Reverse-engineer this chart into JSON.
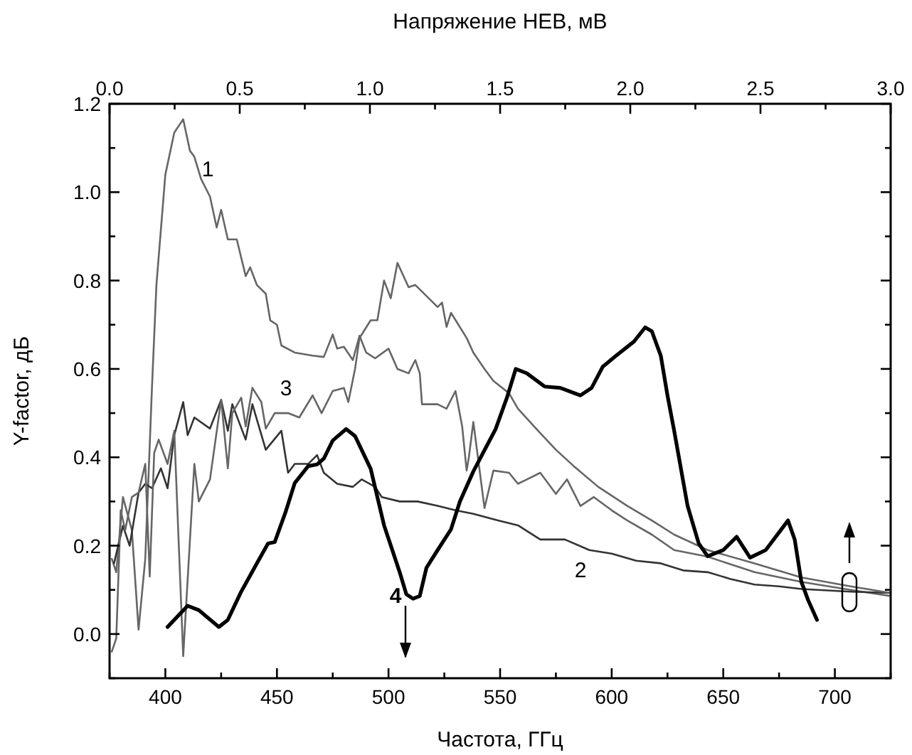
{
  "chart_data": {
    "type": "line",
    "xlabel": "Частота, ГГц",
    "x2label": "Напряжение НЕВ, мВ",
    "ylabel": "Y-factor, дБ",
    "xlim": [
      375,
      725
    ],
    "xticks": [
      {
        "value": 375,
        "label": null
      },
      400,
      {
        "value": 425,
        "label": null
      },
      450,
      {
        "value": 475,
        "label": null
      },
      500,
      {
        "value": 525,
        "label": null
      },
      550,
      {
        "value": 575,
        "label": null
      },
      600,
      {
        "value": 625,
        "label": null
      },
      650,
      {
        "value": 675,
        "label": null
      },
      700,
      {
        "value": 725,
        "label": null
      }
    ],
    "x2lim": [
      0,
      3
    ],
    "x2ticks": [
      {
        "value": 0,
        "label": "0.0"
      },
      {
        "value": 0.25,
        "label": null
      },
      {
        "value": 0.5,
        "label": "0.5"
      },
      {
        "value": 0.75,
        "label": null
      },
      {
        "value": 1,
        "label": "1.0"
      },
      {
        "value": 1.25,
        "label": null
      },
      {
        "value": 1.5,
        "label": "1.5"
      },
      {
        "value": 1.75,
        "label": null
      },
      {
        "value": 2,
        "label": "2.0"
      },
      {
        "value": 2.25,
        "label": null
      },
      {
        "value": 2.5,
        "label": "2.5"
      },
      {
        "value": 2.75,
        "label": null
      },
      {
        "value": 3,
        "label": "3.0"
      }
    ],
    "ylim": [
      -0.1,
      1.2
    ],
    "yticks": [
      {
        "value": -0.1,
        "label": null
      },
      {
        "value": 0,
        "label": "0.0"
      },
      {
        "value": 0.1,
        "label": null
      },
      {
        "value": 0.2,
        "label": "0.2"
      },
      {
        "value": 0.3,
        "label": null
      },
      {
        "value": 0.4,
        "label": "0.4"
      },
      {
        "value": 0.5,
        "label": null
      },
      {
        "value": 0.6,
        "label": "0.6"
      },
      {
        "value": 0.7,
        "label": null
      },
      {
        "value": 0.8,
        "label": "0.8"
      },
      {
        "value": 0.9,
        "label": null
      },
      {
        "value": 1,
        "label": "1.0"
      },
      {
        "value": 1.1,
        "label": null
      },
      {
        "value": 1.2,
        "label": "1.2"
      }
    ],
    "grid": false,
    "legend": false,
    "marker": "none",
    "line_style": "solid",
    "series": [
      {
        "name": "1",
        "color": "#666666",
        "x": [
          376,
          378,
          381,
          385,
          388,
          391,
          394,
          396,
          400,
          404,
          408,
          411,
          413,
          416,
          420,
          423,
          425,
          428,
          432,
          436,
          438,
          441,
          445,
          447,
          450,
          452,
          458,
          466,
          471,
          475,
          477,
          480,
          484,
          487,
          490,
          494,
          500,
          504,
          509,
          512,
          514,
          515,
          522,
          526,
          530,
          533,
          535,
          536,
          538,
          543,
          547,
          554,
          558,
          562,
          568,
          575,
          580,
          586,
          592,
          600,
          607,
          618,
          628,
          643,
          664,
          685,
          707,
          725
        ],
        "values": [
          0.17,
          0.14,
          0.31,
          0.235,
          0.01,
          0.17,
          0.557,
          0.79,
          1.04,
          1.135,
          1.165,
          1.094,
          1.08,
          1.03,
          0.99,
          0.92,
          0.96,
          0.893,
          0.893,
          0.81,
          0.83,
          0.79,
          0.77,
          0.71,
          0.7,
          0.653,
          0.637,
          0.63,
          0.627,
          0.678,
          0.646,
          0.65,
          0.62,
          0.675,
          0.637,
          0.624,
          0.646,
          0.6,
          0.59,
          0.62,
          0.59,
          0.52,
          0.52,
          0.51,
          0.55,
          0.47,
          0.37,
          0.4,
          0.48,
          0.285,
          0.37,
          0.365,
          0.34,
          0.35,
          0.365,
          0.317,
          0.35,
          0.29,
          0.31,
          0.28,
          0.257,
          0.225,
          0.19,
          0.175,
          0.14,
          0.118,
          0.1,
          0.086
        ]
      },
      {
        "name": "2",
        "color": "#333333",
        "x": [
          377,
          381,
          384,
          388,
          391,
          394,
          398,
          401,
          404,
          408,
          410,
          413,
          420,
          425,
          428,
          430,
          436,
          439,
          445,
          452,
          455,
          458,
          464,
          468,
          471,
          477,
          484,
          488,
          494,
          497,
          505,
          513,
          522,
          530,
          538,
          549,
          558,
          568,
          579,
          590,
          600,
          611,
          622,
          632,
          643,
          653,
          664,
          675,
          685,
          707,
          725
        ],
        "values": [
          0.16,
          0.245,
          0.2,
          0.32,
          0.34,
          0.33,
          0.375,
          0.33,
          0.45,
          0.525,
          0.45,
          0.49,
          0.465,
          0.53,
          0.46,
          0.52,
          0.44,
          0.52,
          0.417,
          0.46,
          0.365,
          0.385,
          0.385,
          0.405,
          0.365,
          0.34,
          0.333,
          0.35,
          0.333,
          0.31,
          0.3,
          0.3,
          0.29,
          0.28,
          0.272,
          0.257,
          0.246,
          0.214,
          0.214,
          0.19,
          0.182,
          0.166,
          0.16,
          0.144,
          0.14,
          0.125,
          0.112,
          0.108,
          0.102,
          0.096,
          0.093
        ]
      },
      {
        "name": "3",
        "color": "#666666",
        "x": [
          376,
          378,
          380,
          382,
          385,
          388,
          391,
          393,
          395,
          397,
          401,
          404,
          408,
          413,
          415,
          420,
          425,
          428,
          430,
          434,
          436,
          439,
          443,
          445,
          449,
          455,
          460,
          466,
          470,
          475,
          480,
          482,
          485,
          487,
          492,
          495,
          498,
          501,
          504,
          509,
          512,
          515,
          522,
          524,
          526,
          528,
          535,
          538,
          543,
          547,
          554,
          558,
          567,
          575,
          583,
          594,
          607,
          618,
          628,
          643,
          664,
          685,
          707,
          725
        ],
        "values": [
          -0.04,
          -0.01,
          0.28,
          0.235,
          0.31,
          0.32,
          0.385,
          0.13,
          0.41,
          0.44,
          0.385,
          0.46,
          -0.05,
          0.385,
          0.3,
          0.35,
          0.53,
          0.375,
          0.5,
          0.535,
          0.47,
          0.557,
          0.525,
          0.465,
          0.5,
          0.5,
          0.49,
          0.54,
          0.5,
          0.55,
          0.557,
          0.525,
          0.6,
          0.67,
          0.71,
          0.71,
          0.8,
          0.76,
          0.84,
          0.785,
          0.79,
          0.775,
          0.74,
          0.75,
          0.695,
          0.727,
          0.67,
          0.637,
          0.6,
          0.573,
          0.545,
          0.51,
          0.46,
          0.417,
          0.38,
          0.333,
          0.29,
          0.257,
          0.225,
          0.19,
          0.16,
          0.128,
          0.108,
          0.093
        ]
      },
      {
        "name": "4",
        "color": "#000000",
        "x": [
          401,
          410,
          415,
          424,
          428,
          434,
          441,
          446,
          449,
          454,
          458,
          464,
          468,
          471,
          475,
          481,
          485,
          492,
          498,
          505,
          508,
          511,
          514,
          517,
          522,
          528,
          532,
          538,
          543,
          548,
          553,
          557,
          562,
          570,
          577,
          586,
          591,
          596,
          602,
          610,
          615,
          618,
          622,
          625,
          628,
          634,
          639,
          643,
          650,
          656,
          662,
          669,
          675,
          679,
          682,
          685,
          688,
          692
        ],
        "values": [
          0.016,
          0.064,
          0.054,
          0.016,
          0.032,
          0.096,
          0.16,
          0.205,
          0.208,
          0.278,
          0.342,
          0.38,
          0.384,
          0.397,
          0.438,
          0.464,
          0.448,
          0.374,
          0.246,
          0.14,
          0.09,
          0.08,
          0.086,
          0.15,
          0.19,
          0.237,
          0.3,
          0.368,
          0.416,
          0.464,
          0.534,
          0.6,
          0.59,
          0.56,
          0.557,
          0.54,
          0.557,
          0.605,
          0.63,
          0.662,
          0.694,
          0.685,
          0.63,
          0.54,
          0.46,
          0.29,
          0.205,
          0.176,
          0.19,
          0.22,
          0.173,
          0.19,
          0.23,
          0.257,
          0.214,
          0.118,
          0.077,
          0.032
        ]
      }
    ]
  }
}
